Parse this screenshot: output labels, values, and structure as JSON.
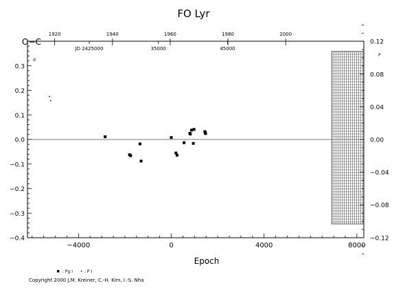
{
  "chart_data": {
    "type": "scatter",
    "title": "FO Lyr",
    "ylabel": "O−C",
    "xlabel": "Epoch",
    "xlim": [
      -6200,
      8300
    ],
    "ylim": [
      -0.4,
      0.4
    ],
    "x_ticks": [
      -4000,
      0,
      4000,
      8000
    ],
    "x_tick_labels": [
      "−4000",
      "0",
      "4000",
      "8000"
    ],
    "y_ticks": [
      -0.4,
      -0.3,
      -0.2,
      -0.1,
      0.0,
      0.1,
      0.2,
      0.3
    ],
    "y_tick_labels": [
      "−0.4",
      "−0.3",
      "−0.2",
      "−0.1",
      "0.0",
      "0.1",
      "0.2",
      "0.3"
    ],
    "y_top_unit": "d",
    "right_axis": {
      "ticks": [
        -0.12,
        -0.08,
        -0.04,
        0.0,
        0.04,
        0.08,
        0.12
      ],
      "tick_labels": [
        "−0.12",
        "−0.08",
        "−0.04",
        "0.00",
        "0.04",
        "0.08",
        "0.12"
      ],
      "top_unit": "P"
    },
    "top_year_axis": {
      "ticks": [
        -5026,
        -2537,
        -47,
        2443,
        4932
      ],
      "labels": [
        "1920",
        "1940",
        "1960",
        "1980",
        "2000"
      ]
    },
    "top_jd_axis": {
      "ticks": [
        -3537,
        -556,
        2426
      ],
      "labels": [
        "JD 2425000",
        "35000",
        "45000"
      ]
    },
    "hatched_region": [
      6920,
      8300
    ],
    "zero_line": 0.0,
    "series": [
      {
        "name": "Pg I",
        "marker": "square",
        "points": [
          {
            "x": -2850,
            "y": 0.011
          },
          {
            "x": -1800,
            "y": -0.062
          },
          {
            "x": -1750,
            "y": -0.066
          },
          {
            "x": -1350,
            "y": -0.018
          },
          {
            "x": -1300,
            "y": -0.088
          },
          {
            "x": 0,
            "y": 0.008
          },
          {
            "x": 200,
            "y": -0.055
          },
          {
            "x": 250,
            "y": -0.064
          },
          {
            "x": 550,
            "y": -0.013
          },
          {
            "x": 800,
            "y": 0.025
          },
          {
            "x": 820,
            "y": 0.022
          },
          {
            "x": 870,
            "y": 0.038
          },
          {
            "x": 950,
            "y": -0.016
          },
          {
            "x": 980,
            "y": 0.041
          },
          {
            "x": 1450,
            "y": 0.032
          },
          {
            "x": 1460,
            "y": 0.028
          },
          {
            "x": 1480,
            "y": 0.024
          }
        ]
      },
      {
        "name": "P I",
        "marker": "dot",
        "points": [
          {
            "x": -5250,
            "y": 0.175
          },
          {
            "x": -5200,
            "y": 0.158
          }
        ]
      }
    ],
    "legend": {
      "items": [
        {
          "marker": "square",
          "text": ": Pg I"
        },
        {
          "marker": "dot",
          "text": ": P I"
        }
      ]
    }
  },
  "copyright": "Copyright 2000 J.M. Kreiner, C.-H. Kim, I.-S. Nha"
}
